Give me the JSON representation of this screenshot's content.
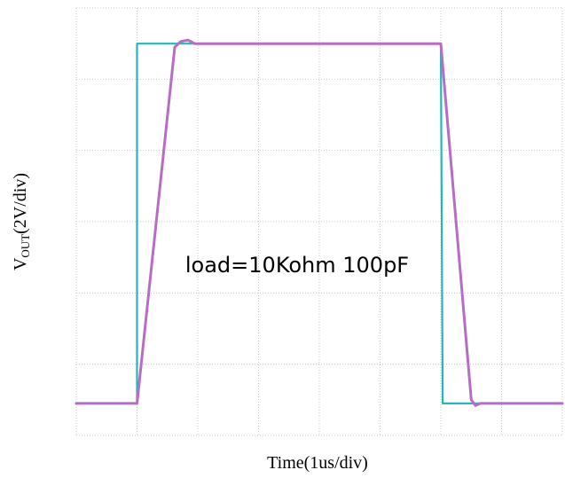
{
  "chart_data": {
    "type": "line",
    "xlabel": "Time(1us/div)",
    "ylabel": {
      "prefix": "V",
      "subscript": "OUT",
      "suffix": "(2V/div)"
    },
    "annotation": "load=10Kohm 100pF",
    "grid": true,
    "xlim": [
      0,
      8
    ],
    "ylim": [
      0,
      6
    ],
    "x_divisions": 8,
    "y_divisions": 6,
    "series": [
      {
        "color": "#22b8b8",
        "x": [
          0,
          1.0,
          1.0,
          6.0,
          6.03,
          8.0
        ],
        "y": [
          0.45,
          0.45,
          5.5,
          5.5,
          0.45,
          0.45
        ]
      },
      {
        "color": "#b76cc6",
        "x": [
          0,
          1.0,
          1.62,
          1.72,
          1.84,
          1.95,
          6.0,
          6.5,
          6.57,
          6.65,
          8.0
        ],
        "y": [
          0.45,
          0.45,
          5.45,
          5.53,
          5.55,
          5.5,
          5.5,
          0.5,
          0.42,
          0.45,
          0.45
        ]
      }
    ]
  }
}
